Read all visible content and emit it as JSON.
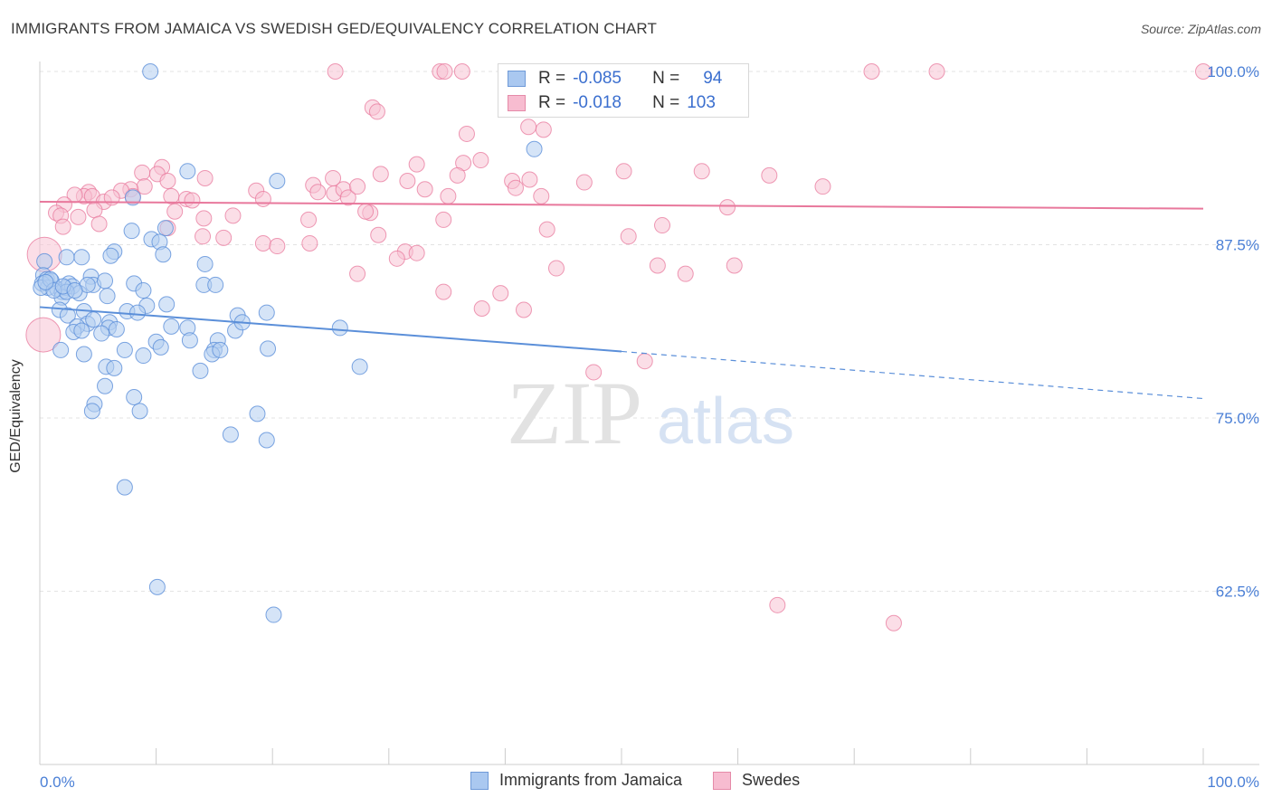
{
  "header": {
    "title": "IMMIGRANTS FROM JAMAICA VS SWEDISH GED/EQUIVALENCY CORRELATION CHART",
    "source_label": "Source: ZipAtlas.com"
  },
  "watermark": {
    "zip": "ZIP",
    "atlas": "atlas"
  },
  "legend": {
    "rows": [
      {
        "r_label": "R =",
        "r_value": "-0.085",
        "n_label": "N =",
        "n_value": "94",
        "color": "#aac8f0",
        "border": "#6f9ad8"
      },
      {
        "r_label": "R =",
        "r_value": "-0.018",
        "n_label": "N =",
        "n_value": "103",
        "color": "#f7bcd0",
        "border": "#e58aa8"
      }
    ]
  },
  "bottom_legend": [
    {
      "label": "Immigrants from Jamaica",
      "color": "#aac8f0",
      "border": "#6f9ad8"
    },
    {
      "label": "Swedes",
      "color": "#f7bcd0",
      "border": "#e58aa8"
    }
  ],
  "chart_data": {
    "type": "scatter",
    "title": "IMMIGRANTS FROM JAMAICA VS SWEDISH GED/EQUIVALENCY CORRELATION CHART",
    "xlabel": "",
    "ylabel": "GED/Equivalency",
    "xlim": [
      0,
      100
    ],
    "ylim": [
      50,
      100
    ],
    "x_tick_labels": [
      "0.0%",
      "100.0%"
    ],
    "y_ticks": [
      62.5,
      75.0,
      87.5,
      100.0
    ],
    "y_tick_labels": [
      "62.5%",
      "75.0%",
      "87.5%",
      "100.0%"
    ],
    "grid": true,
    "colors": {
      "jamaica": "#5b8fd9",
      "swedes": "#e8789c",
      "jamaica_fill": "#b3cdf1",
      "swedes_fill": "#f8c3d4"
    },
    "series": [
      {
        "name": "Immigrants from Jamaica",
        "trend": {
          "x0": 0,
          "y0": 83.0,
          "x1": 50,
          "y1": 79.8,
          "dashed_to_x": 100,
          "dashed_to_y": 76.4
        },
        "points": [
          [
            9.5,
            100
          ],
          [
            42.5,
            94.4
          ],
          [
            12.7,
            92.8
          ],
          [
            20.4,
            92.1
          ],
          [
            8.0,
            90.9
          ],
          [
            7.9,
            88.5
          ],
          [
            10.8,
            88.7
          ],
          [
            9.6,
            87.9
          ],
          [
            10.3,
            87.7
          ],
          [
            10.6,
            86.8
          ],
          [
            6.4,
            87.0
          ],
          [
            6.1,
            86.7
          ],
          [
            3.6,
            86.6
          ],
          [
            2.3,
            86.6
          ],
          [
            14.2,
            86.1
          ],
          [
            0.4,
            86.3
          ],
          [
            0.3,
            85.3
          ],
          [
            0.6,
            85.0
          ],
          [
            1.0,
            84.9
          ],
          [
            0.2,
            84.7
          ],
          [
            0.7,
            84.4
          ],
          [
            1.5,
            84.3
          ],
          [
            1.9,
            84.1
          ],
          [
            2.2,
            84.4
          ],
          [
            2.5,
            84.7
          ],
          [
            2.8,
            84.5
          ],
          [
            3.4,
            84.0
          ],
          [
            1.9,
            83.7
          ],
          [
            2.3,
            84.1
          ],
          [
            4.4,
            85.2
          ],
          [
            4.6,
            84.6
          ],
          [
            4.1,
            84.6
          ],
          [
            5.6,
            84.9
          ],
          [
            8.1,
            84.7
          ],
          [
            14.1,
            84.6
          ],
          [
            15.1,
            84.6
          ],
          [
            5.8,
            83.8
          ],
          [
            8.9,
            84.2
          ],
          [
            10.9,
            83.2
          ],
          [
            9.2,
            83.1
          ],
          [
            1.7,
            82.8
          ],
          [
            2.4,
            82.4
          ],
          [
            3.8,
            82.7
          ],
          [
            7.5,
            82.7
          ],
          [
            8.4,
            82.6
          ],
          [
            17.0,
            82.4
          ],
          [
            19.5,
            82.6
          ],
          [
            4.1,
            81.8
          ],
          [
            4.6,
            82.1
          ],
          [
            6.0,
            81.9
          ],
          [
            5.9,
            81.5
          ],
          [
            3.2,
            81.6
          ],
          [
            2.9,
            81.2
          ],
          [
            3.6,
            81.3
          ],
          [
            5.3,
            81.1
          ],
          [
            6.6,
            81.4
          ],
          [
            11.3,
            81.6
          ],
          [
            12.7,
            81.5
          ],
          [
            16.8,
            81.3
          ],
          [
            17.4,
            81.9
          ],
          [
            25.8,
            81.5
          ],
          [
            12.9,
            80.6
          ],
          [
            15.3,
            80.6
          ],
          [
            10.0,
            80.5
          ],
          [
            10.4,
            80.1
          ],
          [
            1.8,
            79.9
          ],
          [
            3.8,
            79.6
          ],
          [
            7.3,
            79.9
          ],
          [
            8.9,
            79.5
          ],
          [
            15.0,
            79.9
          ],
          [
            14.8,
            79.6
          ],
          [
            19.6,
            80.0
          ],
          [
            15.5,
            79.9
          ],
          [
            5.7,
            78.7
          ],
          [
            6.4,
            78.6
          ],
          [
            13.8,
            78.4
          ],
          [
            27.5,
            78.7
          ],
          [
            5.6,
            77.3
          ],
          [
            8.1,
            76.5
          ],
          [
            4.7,
            76.0
          ],
          [
            4.5,
            75.5
          ],
          [
            8.6,
            75.5
          ],
          [
            18.7,
            75.3
          ],
          [
            16.4,
            73.8
          ],
          [
            19.5,
            73.4
          ],
          [
            7.3,
            70.0
          ],
          [
            10.1,
            62.8
          ],
          [
            20.1,
            60.8
          ],
          [
            0.1,
            84.4
          ],
          [
            0.9,
            85.0
          ],
          [
            1.2,
            84.2
          ],
          [
            2.0,
            84.5
          ],
          [
            3.0,
            84.2
          ],
          [
            0.5,
            84.8
          ]
        ]
      },
      {
        "name": "Swedes",
        "trend": {
          "x0": 0,
          "y0": 90.6,
          "x1": 100,
          "y1": 90.1
        },
        "points": [
          [
            25.4,
            100
          ],
          [
            34.4,
            100
          ],
          [
            34.8,
            100
          ],
          [
            36.3,
            100
          ],
          [
            40.8,
            100
          ],
          [
            41.5,
            100
          ],
          [
            47.5,
            100
          ],
          [
            48.2,
            100
          ],
          [
            71.5,
            100
          ],
          [
            77.1,
            100
          ],
          [
            100,
            100
          ],
          [
            28.6,
            97.4
          ],
          [
            29.0,
            97.1
          ],
          [
            36.7,
            95.5
          ],
          [
            42.0,
            96.0
          ],
          [
            43.3,
            95.8
          ],
          [
            10.5,
            93.1
          ],
          [
            32.4,
            93.3
          ],
          [
            36.4,
            93.4
          ],
          [
            37.9,
            93.6
          ],
          [
            10.1,
            92.6
          ],
          [
            8.8,
            92.7
          ],
          [
            11.0,
            92.1
          ],
          [
            14.2,
            92.3
          ],
          [
            25.2,
            92.3
          ],
          [
            29.3,
            92.6
          ],
          [
            31.6,
            92.1
          ],
          [
            35.9,
            92.5
          ],
          [
            40.6,
            92.1
          ],
          [
            42.1,
            92.2
          ],
          [
            46.8,
            92.0
          ],
          [
            50.2,
            92.8
          ],
          [
            56.9,
            92.8
          ],
          [
            62.7,
            92.5
          ],
          [
            9.0,
            91.7
          ],
          [
            7.8,
            91.5
          ],
          [
            8.0,
            91.0
          ],
          [
            7.0,
            91.4
          ],
          [
            4.2,
            91.3
          ],
          [
            3.8,
            91.0
          ],
          [
            3.0,
            91.1
          ],
          [
            4.5,
            91.0
          ],
          [
            5.5,
            90.6
          ],
          [
            6.2,
            90.9
          ],
          [
            11.3,
            91.0
          ],
          [
            12.6,
            90.8
          ],
          [
            13.1,
            90.7
          ],
          [
            18.6,
            91.4
          ],
          [
            19.2,
            90.8
          ],
          [
            23.5,
            91.8
          ],
          [
            23.9,
            91.3
          ],
          [
            25.3,
            91.2
          ],
          [
            26.1,
            91.5
          ],
          [
            26.5,
            90.9
          ],
          [
            27.3,
            91.7
          ],
          [
            33.1,
            91.5
          ],
          [
            35.1,
            91.0
          ],
          [
            40.9,
            91.6
          ],
          [
            59.1,
            90.2
          ],
          [
            67.3,
            91.7
          ],
          [
            43.1,
            91.0
          ],
          [
            2.1,
            90.4
          ],
          [
            4.7,
            90.0
          ],
          [
            1.4,
            89.8
          ],
          [
            1.8,
            89.6
          ],
          [
            3.3,
            89.5
          ],
          [
            11.6,
            89.9
          ],
          [
            14.1,
            89.4
          ],
          [
            16.6,
            89.6
          ],
          [
            23.1,
            89.3
          ],
          [
            28.4,
            89.8
          ],
          [
            28.0,
            89.9
          ],
          [
            34.7,
            89.3
          ],
          [
            2.0,
            88.8
          ],
          [
            5.1,
            89.0
          ],
          [
            11.0,
            88.7
          ],
          [
            14.0,
            88.1
          ],
          [
            15.8,
            88.0
          ],
          [
            19.2,
            87.6
          ],
          [
            20.4,
            87.4
          ],
          [
            23.2,
            87.6
          ],
          [
            29.1,
            88.2
          ],
          [
            31.4,
            87.0
          ],
          [
            43.6,
            88.6
          ],
          [
            50.6,
            88.1
          ],
          [
            53.5,
            88.9
          ],
          [
            30.7,
            86.5
          ],
          [
            32.4,
            86.9
          ],
          [
            44.4,
            85.8
          ],
          [
            53.1,
            86.0
          ],
          [
            55.5,
            85.4
          ],
          [
            59.7,
            86.0
          ],
          [
            27.3,
            85.4
          ],
          [
            39.6,
            84.0
          ],
          [
            34.7,
            84.1
          ],
          [
            38.0,
            82.9
          ],
          [
            41.6,
            82.8
          ],
          [
            52.0,
            79.1
          ],
          [
            47.6,
            78.3
          ],
          [
            63.4,
            61.5
          ],
          [
            73.4,
            60.2
          ],
          [
            0.3,
            81.0
          ],
          [
            0.4,
            86.8
          ]
        ]
      }
    ]
  }
}
